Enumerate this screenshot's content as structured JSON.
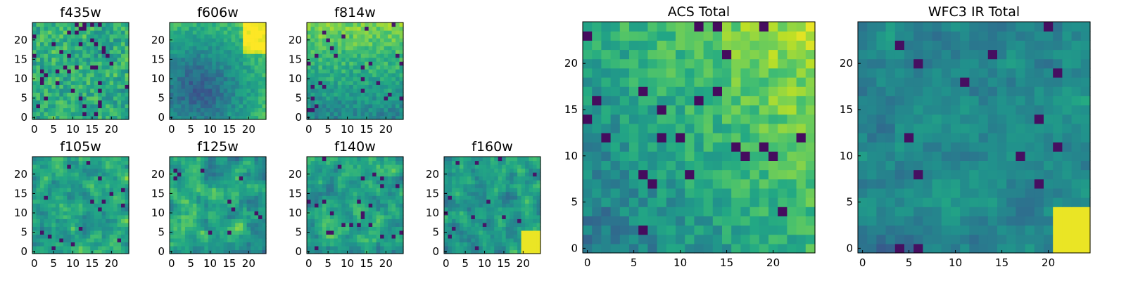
{
  "chart_data": [
    {
      "type": "heatmap",
      "title": "f435w",
      "xticks": [
        "0",
        "5",
        "10",
        "15",
        "20"
      ],
      "yticks": [
        "0",
        "5",
        "10",
        "15",
        "20"
      ],
      "xlim": [
        -0.5,
        24.5
      ],
      "ylim": [
        -0.5,
        24.5
      ],
      "grid_size": 25,
      "colormap": "viridis",
      "texture": "speckle",
      "seed": 11
    },
    {
      "type": "heatmap",
      "title": "f606w",
      "xticks": [
        "0",
        "5",
        "10",
        "15",
        "20"
      ],
      "yticks": [
        "0",
        "5",
        "10",
        "15",
        "20"
      ],
      "xlim": [
        -0.5,
        24.5
      ],
      "ylim": [
        -0.5,
        24.5
      ],
      "grid_size": 25,
      "colormap": "viridis",
      "texture": "dark-blob-bright-corner",
      "seed": 23
    },
    {
      "type": "heatmap",
      "title": "f814w",
      "xticks": [
        "0",
        "5",
        "10",
        "15",
        "20"
      ],
      "yticks": [
        "0",
        "5",
        "10",
        "15",
        "20"
      ],
      "xlim": [
        -0.5,
        24.5
      ],
      "ylim": [
        -0.5,
        24.5
      ],
      "grid_size": 25,
      "colormap": "viridis",
      "texture": "bright-top",
      "seed": 37
    },
    {
      "type": "heatmap",
      "title": "f105w",
      "xticks": [
        "0",
        "5",
        "10",
        "15",
        "20"
      ],
      "yticks": [
        "0",
        "5",
        "10",
        "15",
        "20"
      ],
      "xlim": [
        -0.5,
        24.5
      ],
      "ylim": [
        -0.5,
        24.5
      ],
      "grid_size": 25,
      "colormap": "viridis",
      "texture": "smooth",
      "seed": 41
    },
    {
      "type": "heatmap",
      "title": "f125w",
      "xticks": [
        "0",
        "5",
        "10",
        "15",
        "20"
      ],
      "yticks": [
        "0",
        "5",
        "10",
        "15",
        "20"
      ],
      "xlim": [
        -0.5,
        24.5
      ],
      "ylim": [
        -0.5,
        24.5
      ],
      "grid_size": 25,
      "colormap": "viridis",
      "texture": "smooth",
      "seed": 53
    },
    {
      "type": "heatmap",
      "title": "f140w",
      "xticks": [
        "0",
        "5",
        "10",
        "15",
        "20"
      ],
      "yticks": [
        "0",
        "5",
        "10",
        "15",
        "20"
      ],
      "xlim": [
        -0.5,
        24.5
      ],
      "ylim": [
        -0.5,
        24.5
      ],
      "grid_size": 25,
      "colormap": "viridis",
      "texture": "smooth",
      "seed": 67
    },
    {
      "type": "heatmap",
      "title": "f160w",
      "xticks": [
        "0",
        "5",
        "10",
        "15",
        "20"
      ],
      "yticks": [
        "0",
        "5",
        "10",
        "15",
        "20"
      ],
      "xlim": [
        -0.5,
        24.5
      ],
      "ylim": [
        -0.5,
        24.5
      ],
      "grid_size": 25,
      "colormap": "viridis",
      "texture": "smooth-bright-corner",
      "seed": 79
    },
    {
      "type": "heatmap",
      "title": "ACS Total",
      "xticks": [
        "0",
        "5",
        "10",
        "15",
        "20"
      ],
      "yticks": [
        "0",
        "5",
        "10",
        "15",
        "20"
      ],
      "xlim": [
        -0.5,
        24.5
      ],
      "ylim": [
        -0.5,
        24.5
      ],
      "grid_size": 25,
      "colormap": "viridis",
      "texture": "gradient-bright-top-right",
      "seed": 83
    },
    {
      "type": "heatmap",
      "title": "WFC3 IR Total",
      "xticks": [
        "0",
        "5",
        "10",
        "15",
        "20"
      ],
      "yticks": [
        "0",
        "5",
        "10",
        "15",
        "20"
      ],
      "xlim": [
        -0.5,
        24.5
      ],
      "ylim": [
        -0.5,
        24.5
      ],
      "grid_size": 25,
      "colormap": "viridis",
      "texture": "mid-bright-corner",
      "seed": 97
    }
  ]
}
